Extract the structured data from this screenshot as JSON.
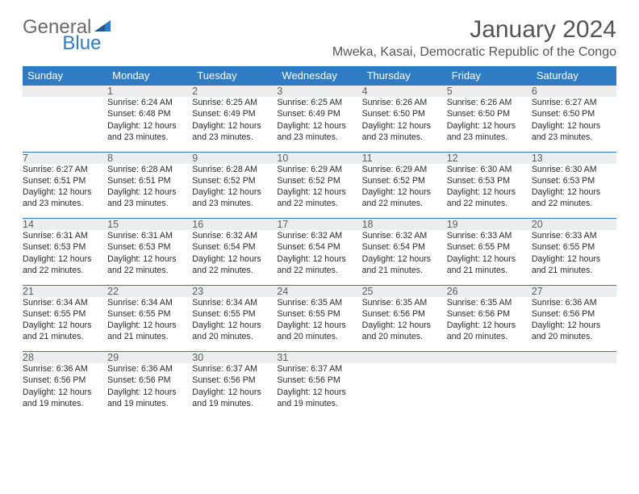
{
  "logo": {
    "text1": "General",
    "text2": "Blue"
  },
  "title": "January 2024",
  "location": "Mweka, Kasai, Democratic Republic of the Congo",
  "colors": {
    "header_bg": "#2f7cc4",
    "header_fg": "#ffffff",
    "daynum_bg": "#ecedee",
    "row_divider": "#2f7cc4",
    "logo_gray": "#6b6b6b",
    "logo_blue": "#2f7cc4",
    "body_text": "#2a2a2a"
  },
  "day_headers": [
    "Sunday",
    "Monday",
    "Tuesday",
    "Wednesday",
    "Thursday",
    "Friday",
    "Saturday"
  ],
  "weeks": [
    {
      "nums": [
        "",
        "1",
        "2",
        "3",
        "4",
        "5",
        "6"
      ],
      "cells": [
        null,
        {
          "sunrise": "Sunrise: 6:24 AM",
          "sunset": "Sunset: 6:48 PM",
          "day1": "Daylight: 12 hours",
          "day2": "and 23 minutes."
        },
        {
          "sunrise": "Sunrise: 6:25 AM",
          "sunset": "Sunset: 6:49 PM",
          "day1": "Daylight: 12 hours",
          "day2": "and 23 minutes."
        },
        {
          "sunrise": "Sunrise: 6:25 AM",
          "sunset": "Sunset: 6:49 PM",
          "day1": "Daylight: 12 hours",
          "day2": "and 23 minutes."
        },
        {
          "sunrise": "Sunrise: 6:26 AM",
          "sunset": "Sunset: 6:50 PM",
          "day1": "Daylight: 12 hours",
          "day2": "and 23 minutes."
        },
        {
          "sunrise": "Sunrise: 6:26 AM",
          "sunset": "Sunset: 6:50 PM",
          "day1": "Daylight: 12 hours",
          "day2": "and 23 minutes."
        },
        {
          "sunrise": "Sunrise: 6:27 AM",
          "sunset": "Sunset: 6:50 PM",
          "day1": "Daylight: 12 hours",
          "day2": "and 23 minutes."
        }
      ]
    },
    {
      "nums": [
        "7",
        "8",
        "9",
        "10",
        "11",
        "12",
        "13"
      ],
      "cells": [
        {
          "sunrise": "Sunrise: 6:27 AM",
          "sunset": "Sunset: 6:51 PM",
          "day1": "Daylight: 12 hours",
          "day2": "and 23 minutes."
        },
        {
          "sunrise": "Sunrise: 6:28 AM",
          "sunset": "Sunset: 6:51 PM",
          "day1": "Daylight: 12 hours",
          "day2": "and 23 minutes."
        },
        {
          "sunrise": "Sunrise: 6:28 AM",
          "sunset": "Sunset: 6:52 PM",
          "day1": "Daylight: 12 hours",
          "day2": "and 23 minutes."
        },
        {
          "sunrise": "Sunrise: 6:29 AM",
          "sunset": "Sunset: 6:52 PM",
          "day1": "Daylight: 12 hours",
          "day2": "and 22 minutes."
        },
        {
          "sunrise": "Sunrise: 6:29 AM",
          "sunset": "Sunset: 6:52 PM",
          "day1": "Daylight: 12 hours",
          "day2": "and 22 minutes."
        },
        {
          "sunrise": "Sunrise: 6:30 AM",
          "sunset": "Sunset: 6:53 PM",
          "day1": "Daylight: 12 hours",
          "day2": "and 22 minutes."
        },
        {
          "sunrise": "Sunrise: 6:30 AM",
          "sunset": "Sunset: 6:53 PM",
          "day1": "Daylight: 12 hours",
          "day2": "and 22 minutes."
        }
      ]
    },
    {
      "nums": [
        "14",
        "15",
        "16",
        "17",
        "18",
        "19",
        "20"
      ],
      "cells": [
        {
          "sunrise": "Sunrise: 6:31 AM",
          "sunset": "Sunset: 6:53 PM",
          "day1": "Daylight: 12 hours",
          "day2": "and 22 minutes."
        },
        {
          "sunrise": "Sunrise: 6:31 AM",
          "sunset": "Sunset: 6:53 PM",
          "day1": "Daylight: 12 hours",
          "day2": "and 22 minutes."
        },
        {
          "sunrise": "Sunrise: 6:32 AM",
          "sunset": "Sunset: 6:54 PM",
          "day1": "Daylight: 12 hours",
          "day2": "and 22 minutes."
        },
        {
          "sunrise": "Sunrise: 6:32 AM",
          "sunset": "Sunset: 6:54 PM",
          "day1": "Daylight: 12 hours",
          "day2": "and 22 minutes."
        },
        {
          "sunrise": "Sunrise: 6:32 AM",
          "sunset": "Sunset: 6:54 PM",
          "day1": "Daylight: 12 hours",
          "day2": "and 21 minutes."
        },
        {
          "sunrise": "Sunrise: 6:33 AM",
          "sunset": "Sunset: 6:55 PM",
          "day1": "Daylight: 12 hours",
          "day2": "and 21 minutes."
        },
        {
          "sunrise": "Sunrise: 6:33 AM",
          "sunset": "Sunset: 6:55 PM",
          "day1": "Daylight: 12 hours",
          "day2": "and 21 minutes."
        }
      ]
    },
    {
      "nums": [
        "21",
        "22",
        "23",
        "24",
        "25",
        "26",
        "27"
      ],
      "cells": [
        {
          "sunrise": "Sunrise: 6:34 AM",
          "sunset": "Sunset: 6:55 PM",
          "day1": "Daylight: 12 hours",
          "day2": "and 21 minutes."
        },
        {
          "sunrise": "Sunrise: 6:34 AM",
          "sunset": "Sunset: 6:55 PM",
          "day1": "Daylight: 12 hours",
          "day2": "and 21 minutes."
        },
        {
          "sunrise": "Sunrise: 6:34 AM",
          "sunset": "Sunset: 6:55 PM",
          "day1": "Daylight: 12 hours",
          "day2": "and 20 minutes."
        },
        {
          "sunrise": "Sunrise: 6:35 AM",
          "sunset": "Sunset: 6:55 PM",
          "day1": "Daylight: 12 hours",
          "day2": "and 20 minutes."
        },
        {
          "sunrise": "Sunrise: 6:35 AM",
          "sunset": "Sunset: 6:56 PM",
          "day1": "Daylight: 12 hours",
          "day2": "and 20 minutes."
        },
        {
          "sunrise": "Sunrise: 6:35 AM",
          "sunset": "Sunset: 6:56 PM",
          "day1": "Daylight: 12 hours",
          "day2": "and 20 minutes."
        },
        {
          "sunrise": "Sunrise: 6:36 AM",
          "sunset": "Sunset: 6:56 PM",
          "day1": "Daylight: 12 hours",
          "day2": "and 20 minutes."
        }
      ]
    },
    {
      "nums": [
        "28",
        "29",
        "30",
        "31",
        "",
        "",
        ""
      ],
      "cells": [
        {
          "sunrise": "Sunrise: 6:36 AM",
          "sunset": "Sunset: 6:56 PM",
          "day1": "Daylight: 12 hours",
          "day2": "and 19 minutes."
        },
        {
          "sunrise": "Sunrise: 6:36 AM",
          "sunset": "Sunset: 6:56 PM",
          "day1": "Daylight: 12 hours",
          "day2": "and 19 minutes."
        },
        {
          "sunrise": "Sunrise: 6:37 AM",
          "sunset": "Sunset: 6:56 PM",
          "day1": "Daylight: 12 hours",
          "day2": "and 19 minutes."
        },
        {
          "sunrise": "Sunrise: 6:37 AM",
          "sunset": "Sunset: 6:56 PM",
          "day1": "Daylight: 12 hours",
          "day2": "and 19 minutes."
        },
        null,
        null,
        null
      ]
    }
  ]
}
